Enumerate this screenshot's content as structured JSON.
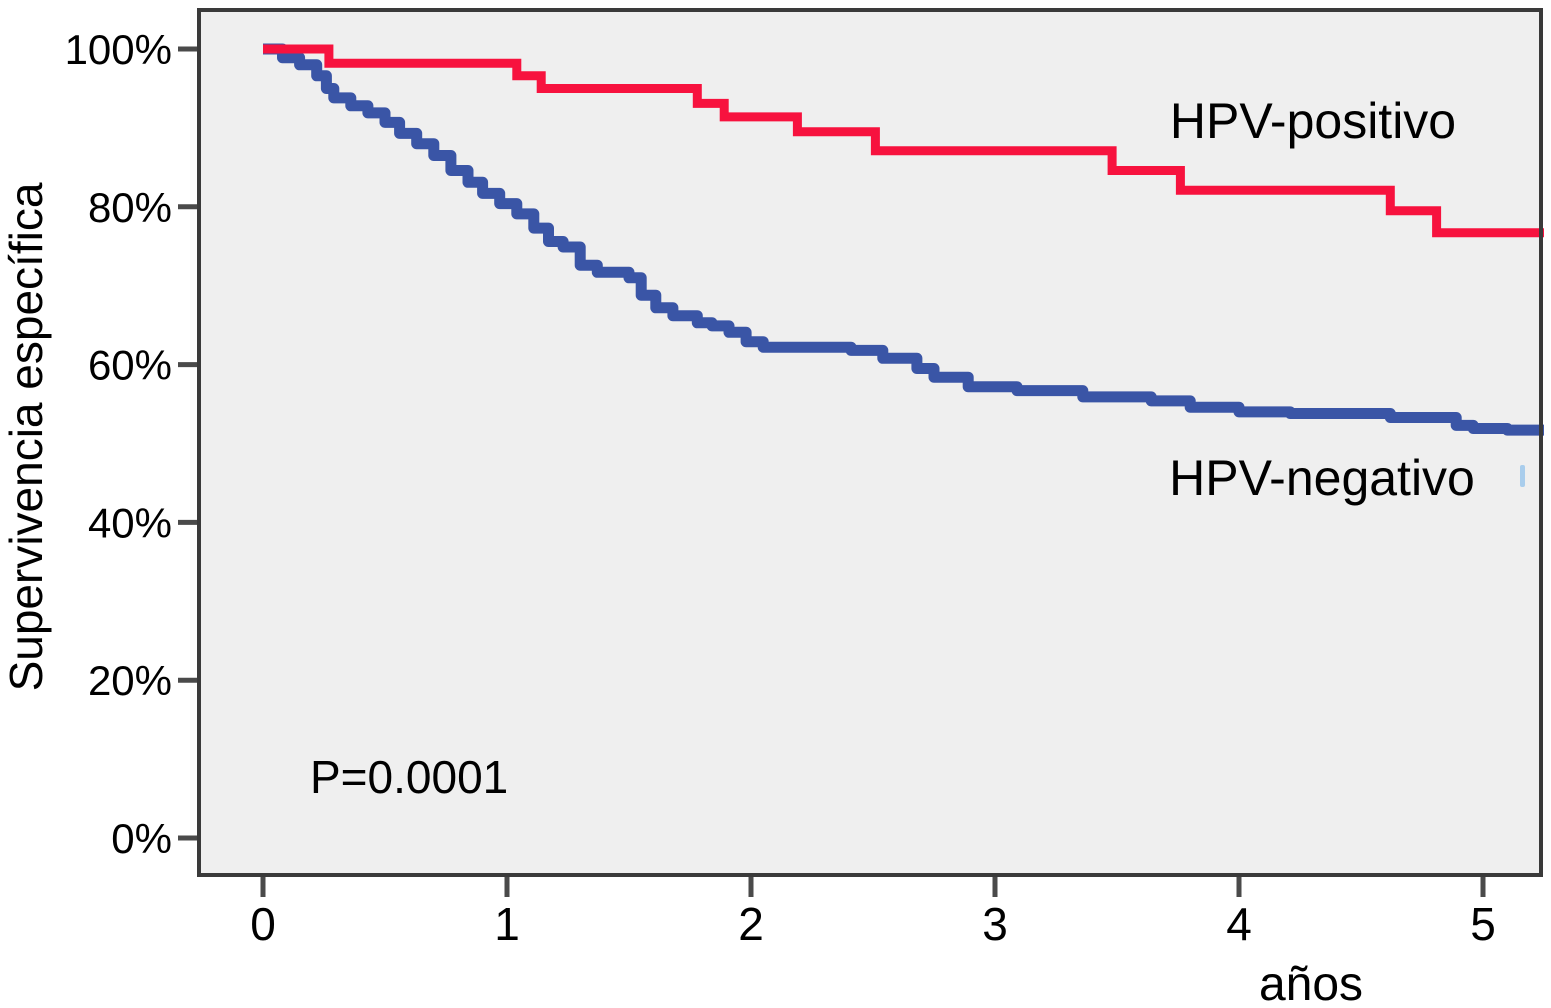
{
  "chart_data": {
    "type": "line",
    "subtype": "kaplan-meier-step-survival",
    "title": "",
    "xlabel": "años",
    "ylabel": "Supervivencia específica",
    "annotation": "P=0.0001",
    "grid": false,
    "legend_position": "inline-curve-labels",
    "plot_bg": "#efefef",
    "border_color": "#3a3a3a",
    "tick_color": "#4a4a4a",
    "censor_mark_color": "#a9cdec",
    "x_axis": {
      "lim": [
        0,
        5.25
      ],
      "ticks": [
        {
          "v": 0,
          "label": "0"
        },
        {
          "v": 1,
          "label": "1"
        },
        {
          "v": 2,
          "label": "2"
        },
        {
          "v": 3,
          "label": "3"
        },
        {
          "v": 4,
          "label": "4"
        },
        {
          "v": 5,
          "label": "5"
        }
      ]
    },
    "y_axis": {
      "lim": [
        0,
        100
      ],
      "ticks": [
        {
          "v": 0,
          "label": "0%"
        },
        {
          "v": 20,
          "label": "20%"
        },
        {
          "v": 40,
          "label": "40%"
        },
        {
          "v": 60,
          "label": "60%"
        },
        {
          "v": 80,
          "label": "80%"
        },
        {
          "v": 100,
          "label": "100%"
        }
      ]
    },
    "series": [
      {
        "name": "HPV-positivo",
        "color": "#f7123e",
        "line_width": 9,
        "points": [
          [
            0,
            100
          ],
          [
            0.27,
            98.2
          ],
          [
            1.04,
            96.6
          ],
          [
            1.14,
            95.0
          ],
          [
            1.78,
            93.1
          ],
          [
            1.89,
            91.4
          ],
          [
            2.19,
            89.5
          ],
          [
            2.51,
            87.1
          ],
          [
            3.48,
            84.6
          ],
          [
            3.76,
            82.1
          ],
          [
            4.62,
            79.5
          ],
          [
            4.81,
            76.7
          ]
        ]
      },
      {
        "name": "HPV-negativo",
        "color": "#3a55a6",
        "line_width": 11,
        "points": [
          [
            0,
            100
          ],
          [
            0.08,
            98.9
          ],
          [
            0.15,
            98.0
          ],
          [
            0.22,
            96.6
          ],
          [
            0.26,
            95.0
          ],
          [
            0.29,
            93.8
          ],
          [
            0.36,
            92.8
          ],
          [
            0.43,
            91.9
          ],
          [
            0.5,
            90.7
          ],
          [
            0.56,
            89.3
          ],
          [
            0.63,
            88.0
          ],
          [
            0.7,
            86.5
          ],
          [
            0.77,
            84.6
          ],
          [
            0.84,
            83.1
          ],
          [
            0.9,
            81.7
          ],
          [
            0.97,
            80.4
          ],
          [
            1.04,
            79.1
          ],
          [
            1.11,
            77.3
          ],
          [
            1.17,
            75.6
          ],
          [
            1.23,
            74.9
          ],
          [
            1.3,
            72.6
          ],
          [
            1.37,
            71.7
          ],
          [
            1.5,
            71.0
          ],
          [
            1.55,
            68.8
          ],
          [
            1.61,
            67.2
          ],
          [
            1.68,
            66.2
          ],
          [
            1.78,
            65.3
          ],
          [
            1.84,
            64.9
          ],
          [
            1.91,
            64.1
          ],
          [
            1.98,
            62.9
          ],
          [
            2.05,
            62.2
          ],
          [
            2.41,
            61.8
          ],
          [
            2.54,
            60.8
          ],
          [
            2.68,
            59.5
          ],
          [
            2.75,
            58.4
          ],
          [
            2.89,
            57.2
          ],
          [
            3.09,
            56.7
          ],
          [
            3.36,
            55.9
          ],
          [
            3.64,
            55.4
          ],
          [
            3.8,
            54.6
          ],
          [
            4.0,
            54.0
          ],
          [
            4.21,
            53.8
          ],
          [
            4.62,
            53.3
          ],
          [
            4.89,
            52.3
          ],
          [
            4.96,
            51.9
          ],
          [
            5.1,
            51.7
          ]
        ]
      }
    ]
  }
}
